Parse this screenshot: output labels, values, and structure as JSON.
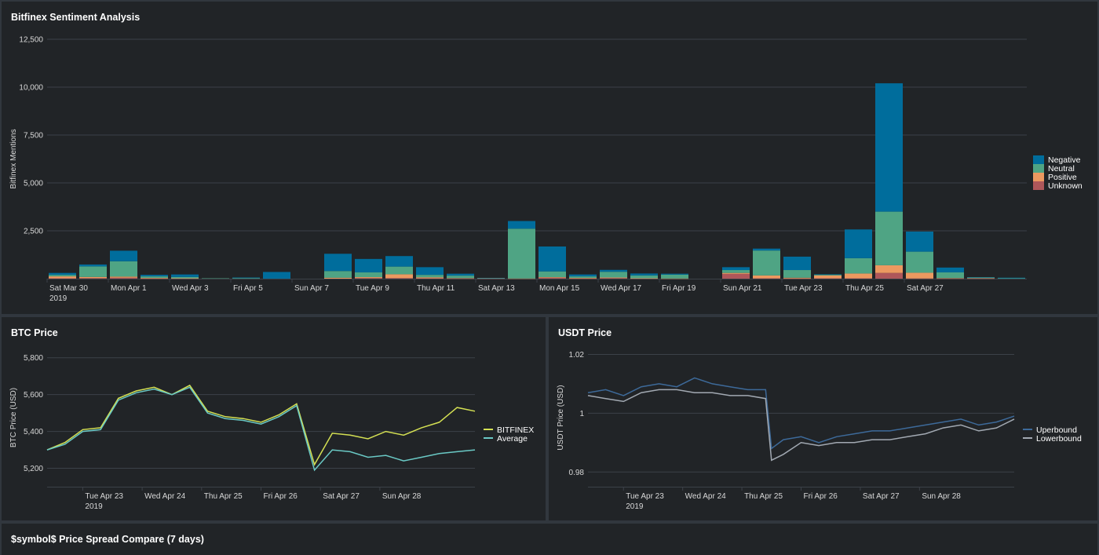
{
  "dashboard": {
    "panels": {
      "sentiment": {
        "title": "Bitfinex Sentiment Analysis"
      },
      "btc": {
        "title": "BTC Price"
      },
      "usdt": {
        "title": "USDT Price"
      },
      "spread": {
        "title": "$symbol$ Price Spread Compare (7 days)"
      }
    }
  },
  "colors": {
    "background": "#31373e",
    "panel": "#212427",
    "grid": "#3c4148",
    "axis_text": "#d8d8d8",
    "negative": "#006d9c",
    "neutral": "#4fa484",
    "positive": "#ec9960",
    "unknown": "#af575a",
    "bitfinex": "#d4e053",
    "average": "#6ac9c5",
    "uperbound": "#3d6a9a",
    "lowerbound": "#a2a9b2"
  },
  "chart_data": [
    {
      "id": "sentiment",
      "type": "bar",
      "stacked": true,
      "title": "Bitfinex Sentiment Analysis",
      "ylabel": "Bitfinex Mentions",
      "ylim": [
        0,
        12500
      ],
      "yticks": [
        "2,500",
        "5,000",
        "7,500",
        "10,000",
        "12,500"
      ],
      "ytick_values": [
        2500,
        5000,
        7500,
        10000,
        12500
      ],
      "xtick_labels": [
        "Sat Mar 30",
        "Mon Apr 1",
        "Wed Apr 3",
        "Fri Apr 5",
        "Sun Apr 7",
        "Tue Apr 9",
        "Thu Apr 11",
        "Sat Apr 13",
        "Mon Apr 15",
        "Wed Apr 17",
        "Fri Apr 19",
        "Sun Apr 21",
        "Tue Apr 23",
        "Thu Apr 25",
        "Sat Apr 27"
      ],
      "xtick_year": "2019",
      "legend_position": "right",
      "categories": [
        "Mar 30",
        "Mar 31",
        "Apr 1",
        "Apr 2",
        "Apr 3",
        "Apr 4",
        "Apr 5",
        "Apr 6",
        "Apr 7",
        "Apr 8",
        "Apr 9",
        "Apr 10",
        "Apr 11",
        "Apr 12",
        "Apr 13",
        "Apr 14",
        "Apr 15",
        "Apr 16",
        "Apr 17",
        "Apr 18",
        "Apr 19",
        "Apr 20",
        "Apr 21",
        "Apr 22",
        "Apr 23",
        "Apr 24",
        "Apr 25",
        "Apr 26",
        "Apr 27",
        "Apr 28",
        "Apr 29",
        "Apr 30"
      ],
      "series": [
        {
          "name": "Unknown",
          "color": "#af575a",
          "values": [
            20,
            30,
            50,
            10,
            10,
            0,
            0,
            0,
            0,
            0,
            30,
            30,
            20,
            10,
            10,
            0,
            50,
            10,
            30,
            10,
            0,
            0,
            250,
            20,
            10,
            20,
            20,
            300,
            10,
            10,
            10,
            0
          ]
        },
        {
          "name": "Positive",
          "color": "#ec9960",
          "values": [
            100,
            60,
            60,
            30,
            10,
            0,
            0,
            0,
            0,
            50,
            50,
            200,
            50,
            20,
            10,
            10,
            30,
            30,
            30,
            10,
            10,
            0,
            50,
            150,
            40,
            150,
            250,
            400,
            300,
            20,
            20,
            0
          ]
        },
        {
          "name": "Neutral",
          "color": "#4fa484",
          "values": [
            80,
            550,
            800,
            80,
            70,
            20,
            30,
            0,
            0,
            350,
            250,
            400,
            130,
            130,
            10,
            2600,
            300,
            80,
            300,
            150,
            200,
            0,
            150,
            1300,
            400,
            50,
            800,
            2800,
            1100,
            300,
            30,
            20
          ]
        },
        {
          "name": "Negative",
          "color": "#006d9c",
          "values": [
            100,
            100,
            550,
            80,
            130,
            0,
            30,
            350,
            0,
            900,
            700,
            550,
            400,
            100,
            10,
            400,
            1300,
            100,
            100,
            100,
            50,
            0,
            150,
            100,
            700,
            10,
            1500,
            6700,
            1050,
            250,
            20,
            30
          ]
        }
      ]
    },
    {
      "id": "btc",
      "type": "line",
      "title": "BTC Price",
      "ylabel": "BTC Price (USD)",
      "ylim": [
        5100,
        5850
      ],
      "yticks": [
        "5,200",
        "5,400",
        "5,600",
        "5,800"
      ],
      "ytick_values": [
        5200,
        5400,
        5600,
        5800
      ],
      "xtick_labels": [
        "Tue Apr 23",
        "Wed Apr 24",
        "Thu Apr 25",
        "Fri Apr 26",
        "Sat Apr 27",
        "Sun Apr 28"
      ],
      "xtick_year": "2019",
      "legend_position": "right",
      "x_days": [
        0,
        0.3,
        0.6,
        0.9,
        1.2,
        1.5,
        1.8,
        2.1,
        2.4,
        2.7,
        3.0,
        3.3,
        3.6,
        3.9,
        4.2,
        4.5,
        4.8,
        5.1,
        5.4,
        5.7,
        6.0,
        6.3,
        6.6,
        6.9,
        7.2
      ],
      "series": [
        {
          "name": "BITFINEX",
          "color": "#d4e053",
          "values": [
            5300,
            5340,
            5410,
            5420,
            5580,
            5620,
            5640,
            5600,
            5650,
            5510,
            5480,
            5470,
            5450,
            5490,
            5550,
            5220,
            5390,
            5380,
            5360,
            5400,
            5380,
            5420,
            5450,
            5530,
            5510
          ]
        },
        {
          "name": "Average",
          "color": "#6ac9c5",
          "values": [
            5300,
            5330,
            5400,
            5410,
            5570,
            5610,
            5630,
            5600,
            5640,
            5500,
            5470,
            5460,
            5440,
            5480,
            5540,
            5190,
            5300,
            5290,
            5260,
            5270,
            5240,
            5260,
            5280,
            5290,
            5300
          ]
        }
      ]
    },
    {
      "id": "usdt",
      "type": "line",
      "title": "USDT Price",
      "ylabel": "USDT Price (USD)",
      "ylim": [
        0.975,
        1.022
      ],
      "yticks": [
        "0.98",
        "1",
        "1.02"
      ],
      "ytick_values": [
        0.98,
        1.0,
        1.02
      ],
      "xtick_labels": [
        "Tue Apr 23",
        "Wed Apr 24",
        "Thu Apr 25",
        "Fri Apr 26",
        "Sat Apr 27",
        "Sun Apr 28"
      ],
      "xtick_year": "2019",
      "legend_position": "right",
      "x_days": [
        0,
        0.3,
        0.6,
        0.9,
        1.2,
        1.5,
        1.8,
        2.1,
        2.4,
        2.7,
        3.0,
        3.1,
        3.3,
        3.6,
        3.9,
        4.2,
        4.5,
        4.8,
        5.1,
        5.4,
        5.7,
        6.0,
        6.3,
        6.6,
        6.9,
        7.2
      ],
      "series": [
        {
          "name": "Uperbound",
          "color": "#3d6a9a",
          "values": [
            1.007,
            1.008,
            1.006,
            1.009,
            1.01,
            1.009,
            1.012,
            1.01,
            1.009,
            1.008,
            1.008,
            0.988,
            0.991,
            0.992,
            0.99,
            0.992,
            0.993,
            0.994,
            0.994,
            0.995,
            0.996,
            0.997,
            0.998,
            0.996,
            0.997,
            0.999
          ]
        },
        {
          "name": "Lowerbound",
          "color": "#a2a9b2",
          "values": [
            1.006,
            1.005,
            1.004,
            1.007,
            1.008,
            1.008,
            1.007,
            1.007,
            1.006,
            1.006,
            1.005,
            0.984,
            0.986,
            0.99,
            0.989,
            0.99,
            0.99,
            0.991,
            0.991,
            0.992,
            0.993,
            0.995,
            0.996,
            0.994,
            0.995,
            0.998
          ]
        }
      ]
    }
  ]
}
